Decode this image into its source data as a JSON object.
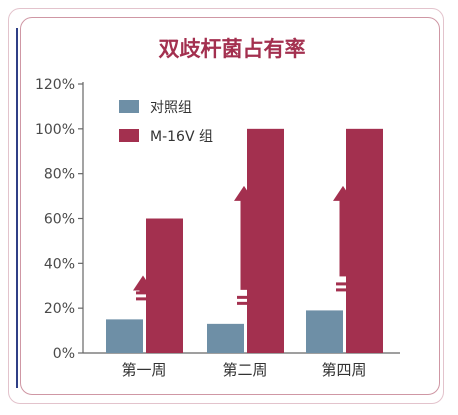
{
  "chart_data": {
    "type": "bar",
    "title": "双歧杆菌占有率",
    "categories": [
      "第一周",
      "第二周",
      "第四周"
    ],
    "series": [
      {
        "name": "对照组",
        "values": [
          15,
          13,
          19
        ],
        "color": "#6e8fa6"
      },
      {
        "name": "M-16V 组",
        "values": [
          60,
          100,
          100
        ],
        "color": "#a3304f"
      }
    ],
    "yticks": [
      "0%",
      "20%",
      "40%",
      "60%",
      "80%",
      "100%",
      "120%"
    ],
    "ylim": [
      0,
      120
    ],
    "legend_position": "top-left",
    "annotation": "upward arrows indicating increase"
  },
  "colors": {
    "frame_outer": "#e3c3cc",
    "frame_inner": "#cf97a4",
    "left_rule": "#2f3f86",
    "arrow": "#a3304f"
  }
}
